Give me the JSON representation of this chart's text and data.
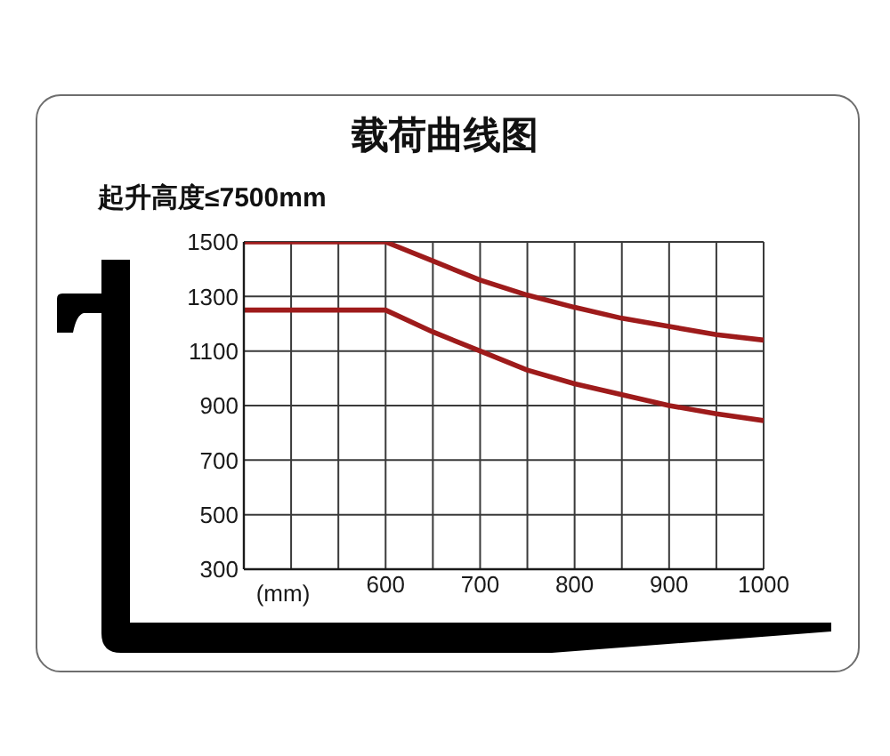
{
  "chart_data": {
    "type": "line",
    "title": "载荷曲线图",
    "subtitle": "起升高度≤7500mm",
    "xlabel": "(mm)",
    "x": [
      450,
      600,
      650,
      700,
      750,
      800,
      850,
      900,
      950,
      1000
    ],
    "series": [
      {
        "color": "#9e1b1b",
        "values": [
          1500,
          1500,
          1430,
          1360,
          1305,
          1260,
          1220,
          1190,
          1160,
          1140
        ]
      },
      {
        "color": "#9e1b1b",
        "values": [
          1250,
          1250,
          1170,
          1100,
          1030,
          980,
          940,
          900,
          870,
          845
        ]
      }
    ],
    "xlim": [
      450,
      1000
    ],
    "xticks": [
      {
        "value": 500,
        "label": null
      },
      {
        "value": 550,
        "label": null
      },
      600,
      {
        "value": 650,
        "label": null
      },
      700,
      {
        "value": 750,
        "label": null
      },
      800,
      {
        "value": 850,
        "label": null
      },
      900,
      {
        "value": 950,
        "label": null
      },
      1000
    ],
    "ylim": [
      300,
      1500
    ],
    "yticks": [
      300,
      500,
      700,
      900,
      1100,
      1300,
      1500
    ],
    "grid": true,
    "marker": "none",
    "line_style": "solid"
  }
}
